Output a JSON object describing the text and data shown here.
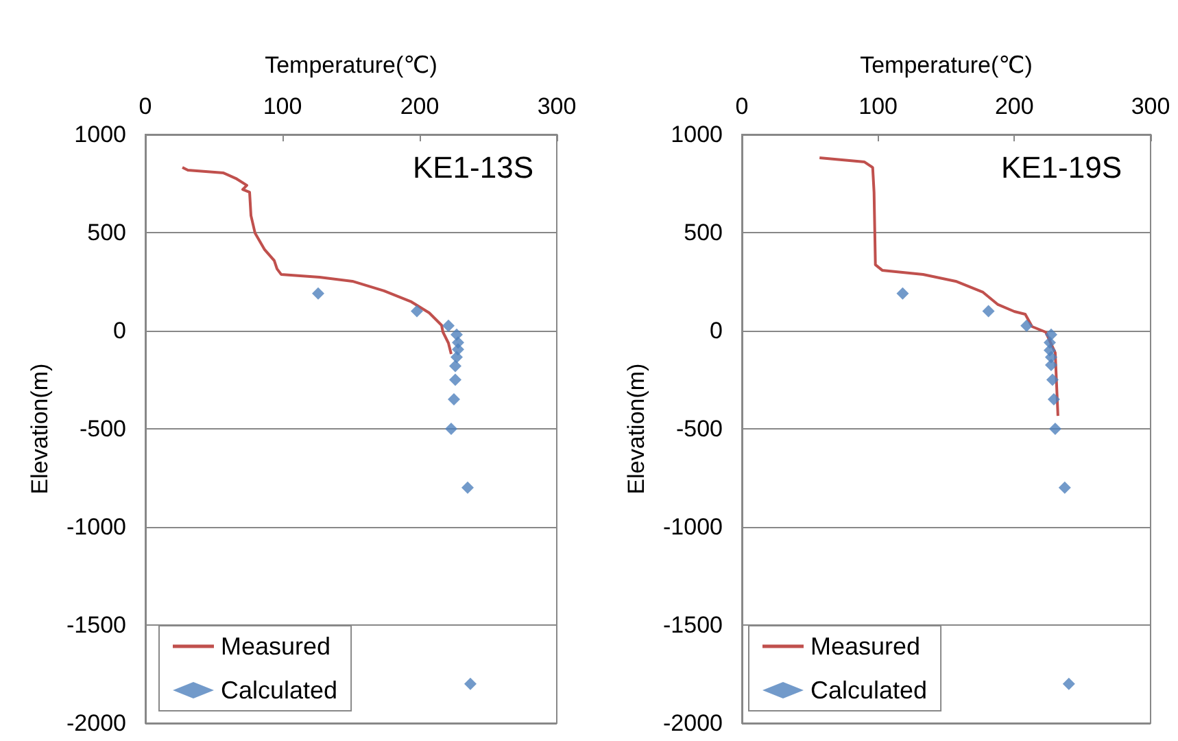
{
  "chart_data": [
    {
      "type": "line",
      "title": "KE1-13S",
      "xlabel": "Temperature(℃)",
      "ylabel": "Elevation(m)",
      "xlim": [
        0,
        300
      ],
      "xticks": [
        0,
        100,
        200,
        300
      ],
      "ylim": [
        -2000,
        1000
      ],
      "yticks": [
        -2000,
        -1500,
        -1000,
        -500,
        0,
        500,
        1000
      ],
      "grid": "y",
      "legend": "bottom left",
      "series": [
        {
          "name": "Measured",
          "color": "#c0504d",
          "marker": "none",
          "x": [
            27,
            31,
            57,
            66,
            74,
            71,
            76,
            77,
            80,
            87,
            94,
            96,
            99,
            127,
            151,
            174,
            194,
            207,
            216,
            217,
            221,
            223
          ],
          "values": [
            832,
            818,
            804,
            776,
            741,
            720,
            706,
            587,
            497,
            413,
            357,
            315,
            287,
            273,
            252,
            203,
            147,
            91,
            28,
            -7,
            -63,
            -119
          ]
        },
        {
          "name": "Calculated",
          "type": "scatter",
          "color": "#4f81bd",
          "marker": "diamond",
          "x": [
            126,
            198,
            221,
            227,
            228,
            228,
            227,
            226,
            226,
            225,
            223,
            235,
            237
          ],
          "values": [
            190,
            100,
            25,
            -20,
            -60,
            -95,
            -135,
            -180,
            -250,
            -350,
            -500,
            -800,
            -1800
          ]
        }
      ]
    },
    {
      "type": "line",
      "title": "KE1-19S",
      "xlabel": "Temperature(℃)",
      "ylabel": "Elevation(m)",
      "xlim": [
        0,
        300
      ],
      "xticks": [
        0,
        100,
        200,
        300
      ],
      "ylim": [
        -2000,
        1000
      ],
      "yticks": [
        -2000,
        -1500,
        -1000,
        -500,
        0,
        500,
        1000
      ],
      "grid": "y",
      "legend": "bottom left",
      "series": [
        {
          "name": "Measured",
          "color": "#c0504d",
          "marker": "none",
          "x": [
            57,
            90,
            96,
            97,
            98,
            103,
            133,
            157,
            177,
            188,
            200,
            208,
            213,
            223,
            230,
            232
          ],
          "values": [
            881,
            860,
            832,
            706,
            336,
            308,
            287,
            252,
            196,
            133,
            98,
            84,
            21,
            -7,
            -112,
            -434
          ]
        },
        {
          "name": "Calculated",
          "type": "scatter",
          "color": "#4f81bd",
          "marker": "diamond",
          "x": [
            118,
            181,
            209,
            227,
            226,
            226,
            227,
            227,
            228,
            229,
            230,
            237,
            240
          ],
          "values": [
            190,
            100,
            25,
            -20,
            -60,
            -100,
            -135,
            -175,
            -250,
            -350,
            -500,
            -800,
            -1800
          ]
        }
      ]
    }
  ]
}
